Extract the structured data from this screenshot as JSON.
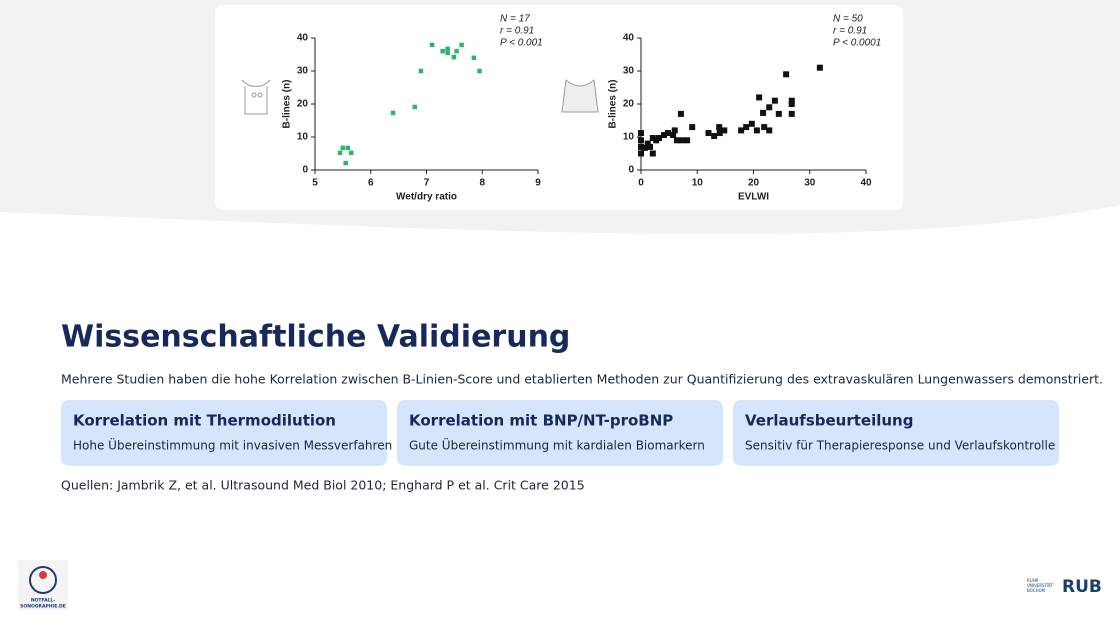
{
  "chart_data": [
    {
      "type": "scatter",
      "x_label": "Wet/dry ratio",
      "y_label": "B-lines (n)",
      "color": "#2fb36c",
      "annotations": [
        "N = 17",
        "r = 0.91",
        "P < 0.001"
      ],
      "xlim": [
        5,
        9
      ],
      "ylim": [
        0,
        40
      ],
      "xticks": [
        5,
        6,
        7,
        8,
        9
      ],
      "yticks": [
        0,
        10,
        20,
        30,
        40
      ],
      "x": [
        5.45,
        5.5,
        5.59,
        5.65,
        5.55,
        6.4,
        6.79,
        6.9,
        7.1,
        7.29,
        7.38,
        7.38,
        7.49,
        7.54,
        7.63,
        7.85,
        7.95
      ],
      "values": [
        5.2,
        6.7,
        6.7,
        5.2,
        2.1,
        17.3,
        19.1,
        30,
        37.9,
        36,
        36.7,
        35.5,
        34.2,
        36,
        37.9,
        34,
        30
      ]
    },
    {
      "type": "scatter",
      "x_label": "EVLWI",
      "y_label": "B-lines (n)",
      "color": "#111111",
      "annotations": [
        "N = 50",
        "r = 0.91",
        "P < 0.0001"
      ],
      "xlim": [
        0,
        40
      ],
      "ylim": [
        0,
        40
      ],
      "xticks": [
        0,
        10,
        20,
        30,
        40
      ],
      "yticks": [
        0,
        10,
        20,
        30,
        40
      ],
      "x": [
        0,
        0,
        0,
        0,
        0.7,
        1.2,
        1.6,
        2.1,
        2.1,
        2.7,
        3.2,
        4.1,
        4.8,
        5.7,
        6,
        6.4,
        7.1,
        7.3,
        8.2,
        9.1,
        12,
        13,
        13.9,
        14,
        14.8,
        17.8,
        18.7,
        19.7,
        20.6,
        21,
        21.7,
        21.9,
        22.8,
        22.8,
        23.8,
        24.5,
        25.8,
        26.8,
        26.8,
        26.8,
        31.8
      ],
      "values": [
        11.2,
        9,
        7,
        5,
        6.7,
        8,
        7,
        5,
        9.7,
        9,
        9.7,
        10.6,
        11.2,
        10.6,
        12,
        9,
        17,
        9,
        9,
        13,
        11.2,
        10.3,
        13,
        11.2,
        12,
        12,
        13,
        14,
        12,
        22,
        17.3,
        13,
        19,
        12,
        21,
        17,
        29,
        21,
        20,
        17,
        31
      ]
    }
  ],
  "title": "Wissenschaftliche Validierung",
  "intro": "Mehrere Studien haben die hohe Korrelation zwischen B-Linien-Score und etablierten Methoden zur Quantifizierung des extravaskulären Lungenwassers demonstriert.",
  "cards": [
    {
      "title": "Korrelation mit Thermodilution",
      "text": "Hohe Übereinstimmung mit invasiven Messverfahren"
    },
    {
      "title": "Korrelation mit BNP/NT-proBNP",
      "text": "Gute Übereinstimmung mit kardialen Biomarkern"
    },
    {
      "title": "Verlaufsbeurteilung",
      "text": "Sensitiv für Therapieresponse und Verlaufskontrolle"
    }
  ],
  "sources": "Quellen: Jambrik Z, et al. Ultrasound Med Biol 2010; Enghard P et al. Crit Care 2015",
  "logo_left": [
    "NOTFALL-",
    "SONOGRAPHIE.DE"
  ],
  "logo_right": {
    "lines": [
      "RUHR",
      "UNIVERSITÄT",
      "BOCHUM"
    ],
    "mark": "RUB"
  }
}
